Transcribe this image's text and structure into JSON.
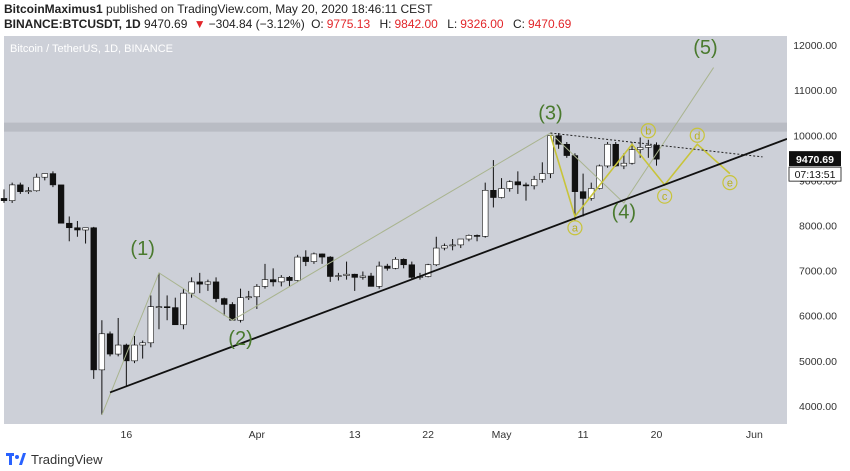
{
  "header": {
    "author": "BitcoinMaximus1",
    "published_text": "published on TradingView.com, May 20, 2020 18:46:11 CEST",
    "symbol": "BINANCE:BTCUSDT, 1D",
    "last": "9470.69",
    "change": "−304.84 (−3.12%)",
    "o_label": "O:",
    "o_value": "9775.13",
    "h_label": "H:",
    "h_value": "9842.00",
    "l_label": "L:",
    "l_value": "9326.00",
    "c_label": "C:",
    "c_value": "9470.69"
  },
  "footer": {
    "brand": "TradingView"
  },
  "colors": {
    "background": "#cdd0d8",
    "up": "#ffffff",
    "down": "#111111",
    "wave": "#4a7a2e",
    "sub_wave": "#c8c43a",
    "trendline": "#111111",
    "resistance": "#b9bcc4"
  },
  "chart_data": {
    "type": "candlestick",
    "title": "Bitcoin / TetherUS, 1D, BINANCE",
    "ylim": [
      3600,
      12200
    ],
    "y_ticks": [
      4000,
      5000,
      6000,
      7000,
      8000,
      9000,
      10000,
      11000,
      12000
    ],
    "y_tick_labels": [
      "4000.00",
      "5000.00",
      "6000.00",
      "7000.00",
      "8000.00",
      "9000.00",
      "10000.00",
      "11000.00",
      "12000.00"
    ],
    "x_start": "2020-03-01",
    "x_end": "2020-06-05",
    "x_ticks": [
      {
        "date": "2020-03-16",
        "label": "16"
      },
      {
        "date": "2020-04-01",
        "label": "Apr"
      },
      {
        "date": "2020-04-13",
        "label": "13"
      },
      {
        "date": "2020-04-22",
        "label": "22"
      },
      {
        "date": "2020-05-01",
        "label": "May"
      },
      {
        "date": "2020-05-11",
        "label": "11"
      },
      {
        "date": "2020-05-20",
        "label": "20"
      },
      {
        "date": "2020-06-01",
        "label": "Jun"
      }
    ],
    "last_price_label": "9470.69",
    "countdown_label": "07:13:51",
    "candles": [
      {
        "d": "2020-03-01",
        "o": 8600,
        "h": 8800,
        "l": 8500,
        "c": 8550
      },
      {
        "d": "2020-03-02",
        "o": 8550,
        "h": 8950,
        "l": 8500,
        "c": 8900
      },
      {
        "d": "2020-03-03",
        "o": 8900,
        "h": 8950,
        "l": 8700,
        "c": 8750
      },
      {
        "d": "2020-03-04",
        "o": 8750,
        "h": 8850,
        "l": 8700,
        "c": 8770
      },
      {
        "d": "2020-03-05",
        "o": 8770,
        "h": 9150,
        "l": 8750,
        "c": 9070
      },
      {
        "d": "2020-03-06",
        "o": 9070,
        "h": 9150,
        "l": 9000,
        "c": 9150
      },
      {
        "d": "2020-03-07",
        "o": 9150,
        "h": 9200,
        "l": 8850,
        "c": 8900
      },
      {
        "d": "2020-03-08",
        "o": 8900,
        "h": 8900,
        "l": 8050,
        "c": 8050
      },
      {
        "d": "2020-03-09",
        "o": 8050,
        "h": 8200,
        "l": 7650,
        "c": 7950
      },
      {
        "d": "2020-03-10",
        "o": 7950,
        "h": 8100,
        "l": 7750,
        "c": 7900
      },
      {
        "d": "2020-03-11",
        "o": 7900,
        "h": 7950,
        "l": 7600,
        "c": 7950
      },
      {
        "d": "2020-03-12",
        "o": 7950,
        "h": 7970,
        "l": 4600,
        "c": 4800
      },
      {
        "d": "2020-03-13",
        "o": 4800,
        "h": 5900,
        "l": 3800,
        "c": 5600
      },
      {
        "d": "2020-03-14",
        "o": 5600,
        "h": 5650,
        "l": 5100,
        "c": 5150
      },
      {
        "d": "2020-03-15",
        "o": 5150,
        "h": 5950,
        "l": 5100,
        "c": 5350
      },
      {
        "d": "2020-03-16",
        "o": 5350,
        "h": 5380,
        "l": 4450,
        "c": 5000
      },
      {
        "d": "2020-03-17",
        "o": 5000,
        "h": 5550,
        "l": 4950,
        "c": 5350
      },
      {
        "d": "2020-03-18",
        "o": 5350,
        "h": 5450,
        "l": 5050,
        "c": 5400
      },
      {
        "d": "2020-03-19",
        "o": 5400,
        "h": 6450,
        "l": 5300,
        "c": 6200
      },
      {
        "d": "2020-03-20",
        "o": 6200,
        "h": 6950,
        "l": 5700,
        "c": 6200
      },
      {
        "d": "2020-03-21",
        "o": 6200,
        "h": 6450,
        "l": 5900,
        "c": 6180
      },
      {
        "d": "2020-03-22",
        "o": 6180,
        "h": 6400,
        "l": 5800,
        "c": 5800
      },
      {
        "d": "2020-03-23",
        "o": 5800,
        "h": 6600,
        "l": 5700,
        "c": 6500
      },
      {
        "d": "2020-03-24",
        "o": 6500,
        "h": 6850,
        "l": 6400,
        "c": 6750
      },
      {
        "d": "2020-03-25",
        "o": 6750,
        "h": 6950,
        "l": 6500,
        "c": 6700
      },
      {
        "d": "2020-03-26",
        "o": 6700,
        "h": 6800,
        "l": 6550,
        "c": 6750
      },
      {
        "d": "2020-03-27",
        "o": 6750,
        "h": 6850,
        "l": 6300,
        "c": 6380
      },
      {
        "d": "2020-03-28",
        "o": 6380,
        "h": 6400,
        "l": 6000,
        "c": 6250
      },
      {
        "d": "2020-03-29",
        "o": 6250,
        "h": 6300,
        "l": 5900,
        "c": 5900
      },
      {
        "d": "2020-03-30",
        "o": 5900,
        "h": 6600,
        "l": 5850,
        "c": 6400
      },
      {
        "d": "2020-03-31",
        "o": 6400,
        "h": 6550,
        "l": 6350,
        "c": 6420
      },
      {
        "d": "2020-04-01",
        "o": 6420,
        "h": 6700,
        "l": 6150,
        "c": 6650
      },
      {
        "d": "2020-04-02",
        "o": 6650,
        "h": 7150,
        "l": 6600,
        "c": 6800
      },
      {
        "d": "2020-04-03",
        "o": 6800,
        "h": 7050,
        "l": 6650,
        "c": 6750
      },
      {
        "d": "2020-04-04",
        "o": 6750,
        "h": 6900,
        "l": 6650,
        "c": 6850
      },
      {
        "d": "2020-04-05",
        "o": 6850,
        "h": 6880,
        "l": 6650,
        "c": 6780
      },
      {
        "d": "2020-04-06",
        "o": 6780,
        "h": 7350,
        "l": 6750,
        "c": 7300
      },
      {
        "d": "2020-04-07",
        "o": 7300,
        "h": 7450,
        "l": 7100,
        "c": 7200
      },
      {
        "d": "2020-04-08",
        "o": 7200,
        "h": 7400,
        "l": 7150,
        "c": 7370
      },
      {
        "d": "2020-04-09",
        "o": 7370,
        "h": 7380,
        "l": 7150,
        "c": 7300
      },
      {
        "d": "2020-04-10",
        "o": 7300,
        "h": 7320,
        "l": 6750,
        "c": 6870
      },
      {
        "d": "2020-04-11",
        "o": 6870,
        "h": 6950,
        "l": 6780,
        "c": 6890
      },
      {
        "d": "2020-04-12",
        "o": 6890,
        "h": 7200,
        "l": 6800,
        "c": 6920
      },
      {
        "d": "2020-04-13",
        "o": 6920,
        "h": 6930,
        "l": 6550,
        "c": 6850
      },
      {
        "d": "2020-04-14",
        "o": 6850,
        "h": 6980,
        "l": 6800,
        "c": 6880
      },
      {
        "d": "2020-04-15",
        "o": 6880,
        "h": 6950,
        "l": 6650,
        "c": 6650
      },
      {
        "d": "2020-04-16",
        "o": 6650,
        "h": 7200,
        "l": 6600,
        "c": 7100
      },
      {
        "d": "2020-04-17",
        "o": 7100,
        "h": 7150,
        "l": 7000,
        "c": 7050
      },
      {
        "d": "2020-04-18",
        "o": 7050,
        "h": 7300,
        "l": 7030,
        "c": 7250
      },
      {
        "d": "2020-04-19",
        "o": 7250,
        "h": 7270,
        "l": 7050,
        "c": 7130
      },
      {
        "d": "2020-04-20",
        "o": 7130,
        "h": 7200,
        "l": 6800,
        "c": 6850
      },
      {
        "d": "2020-04-21",
        "o": 6850,
        "h": 6950,
        "l": 6800,
        "c": 6870
      },
      {
        "d": "2020-04-22",
        "o": 6870,
        "h": 7150,
        "l": 6850,
        "c": 7130
      },
      {
        "d": "2020-04-23",
        "o": 7130,
        "h": 7750,
        "l": 7100,
        "c": 7500
      },
      {
        "d": "2020-04-24",
        "o": 7500,
        "h": 7600,
        "l": 7450,
        "c": 7550
      },
      {
        "d": "2020-04-25",
        "o": 7550,
        "h": 7700,
        "l": 7450,
        "c": 7570
      },
      {
        "d": "2020-04-26",
        "o": 7570,
        "h": 7700,
        "l": 7500,
        "c": 7700
      },
      {
        "d": "2020-04-27",
        "o": 7700,
        "h": 7800,
        "l": 7650,
        "c": 7780
      },
      {
        "d": "2020-04-28",
        "o": 7780,
        "h": 7800,
        "l": 7650,
        "c": 7760
      },
      {
        "d": "2020-04-29",
        "o": 7760,
        "h": 8950,
        "l": 7730,
        "c": 8780
      },
      {
        "d": "2020-04-30",
        "o": 8780,
        "h": 9450,
        "l": 8400,
        "c": 8620
      },
      {
        "d": "2020-05-01",
        "o": 8620,
        "h": 9050,
        "l": 8600,
        "c": 8820
      },
      {
        "d": "2020-05-02",
        "o": 8820,
        "h": 9000,
        "l": 8750,
        "c": 8970
      },
      {
        "d": "2020-05-03",
        "o": 8970,
        "h": 9200,
        "l": 8700,
        "c": 8900
      },
      {
        "d": "2020-05-04",
        "o": 8900,
        "h": 8950,
        "l": 8550,
        "c": 8880
      },
      {
        "d": "2020-05-05",
        "o": 8880,
        "h": 9100,
        "l": 8800,
        "c": 9020
      },
      {
        "d": "2020-05-06",
        "o": 9020,
        "h": 9400,
        "l": 8950,
        "c": 9150
      },
      {
        "d": "2020-05-07",
        "o": 9150,
        "h": 10000,
        "l": 9050,
        "c": 9990
      },
      {
        "d": "2020-05-08",
        "o": 9990,
        "h": 10050,
        "l": 9700,
        "c": 9800
      },
      {
        "d": "2020-05-09",
        "o": 9800,
        "h": 9850,
        "l": 9500,
        "c": 9550
      },
      {
        "d": "2020-05-10",
        "o": 9550,
        "h": 9600,
        "l": 8100,
        "c": 8750
      },
      {
        "d": "2020-05-11",
        "o": 8750,
        "h": 9150,
        "l": 8200,
        "c": 8600
      },
      {
        "d": "2020-05-12",
        "o": 8600,
        "h": 8950,
        "l": 8550,
        "c": 8820
      },
      {
        "d": "2020-05-13",
        "o": 8820,
        "h": 9350,
        "l": 8800,
        "c": 9320
      },
      {
        "d": "2020-05-14",
        "o": 9320,
        "h": 9850,
        "l": 9280,
        "c": 9800
      },
      {
        "d": "2020-05-15",
        "o": 9800,
        "h": 9850,
        "l": 9300,
        "c": 9320
      },
      {
        "d": "2020-05-16",
        "o": 9320,
        "h": 9600,
        "l": 9250,
        "c": 9380
      },
      {
        "d": "2020-05-17",
        "o": 9380,
        "h": 9850,
        "l": 9350,
        "c": 9680
      },
      {
        "d": "2020-05-18",
        "o": 9680,
        "h": 9950,
        "l": 9500,
        "c": 9730
      },
      {
        "d": "2020-05-19",
        "o": 9730,
        "h": 9900,
        "l": 9500,
        "c": 9775
      },
      {
        "d": "2020-05-20",
        "o": 9775.13,
        "h": 9842,
        "l": 9326,
        "c": 9470.69
      }
    ],
    "trendline": {
      "start": {
        "d": "2020-03-14",
        "v": 4300
      },
      "end": {
        "d": "2020-06-05",
        "v": 9920
      }
    },
    "resistance_zone": [
      10080,
      10280
    ],
    "triangle_upper": {
      "start": {
        "d": "2020-05-07",
        "v": 10050
      },
      "end": {
        "d": "2020-06-02",
        "v": 9520
      }
    },
    "main_wave_path": [
      {
        "d": "2020-03-13",
        "v": 3800
      },
      {
        "d": "2020-03-20",
        "v": 6950
      },
      {
        "d": "2020-03-29",
        "v": 5900
      },
      {
        "d": "2020-05-07",
        "v": 10050
      },
      {
        "d": "2020-05-16",
        "v": 8500
      },
      {
        "d": "2020-05-27",
        "v": 11500
      }
    ],
    "main_wave_labels": [
      {
        "text": "(1)",
        "d": "2020-03-18",
        "v": 7350
      },
      {
        "text": "(2)",
        "d": "2020-03-30",
        "v": 5350
      },
      {
        "text": "(3)",
        "d": "2020-05-07",
        "v": 10350
      },
      {
        "text": "(4)",
        "d": "2020-05-16",
        "v": 8150
      },
      {
        "text": "(5)",
        "d": "2020-05-26",
        "v": 11800
      }
    ],
    "sub_wave_path": [
      {
        "d": "2020-05-07",
        "v": 10000
      },
      {
        "d": "2020-05-10",
        "v": 8200
      },
      {
        "d": "2020-05-17",
        "v": 9800
      },
      {
        "d": "2020-05-21",
        "v": 8900
      },
      {
        "d": "2020-05-25",
        "v": 9800
      },
      {
        "d": "2020-05-29",
        "v": 9150
      }
    ],
    "sub_wave_labels": [
      {
        "text": "a",
        "d": "2020-05-10",
        "v": 7950
      },
      {
        "text": "b",
        "d": "2020-05-19",
        "v": 10100
      },
      {
        "text": "c",
        "d": "2020-05-21",
        "v": 8650
      },
      {
        "text": "d",
        "d": "2020-05-25",
        "v": 10000
      },
      {
        "text": "e",
        "d": "2020-05-29",
        "v": 8950
      }
    ]
  }
}
